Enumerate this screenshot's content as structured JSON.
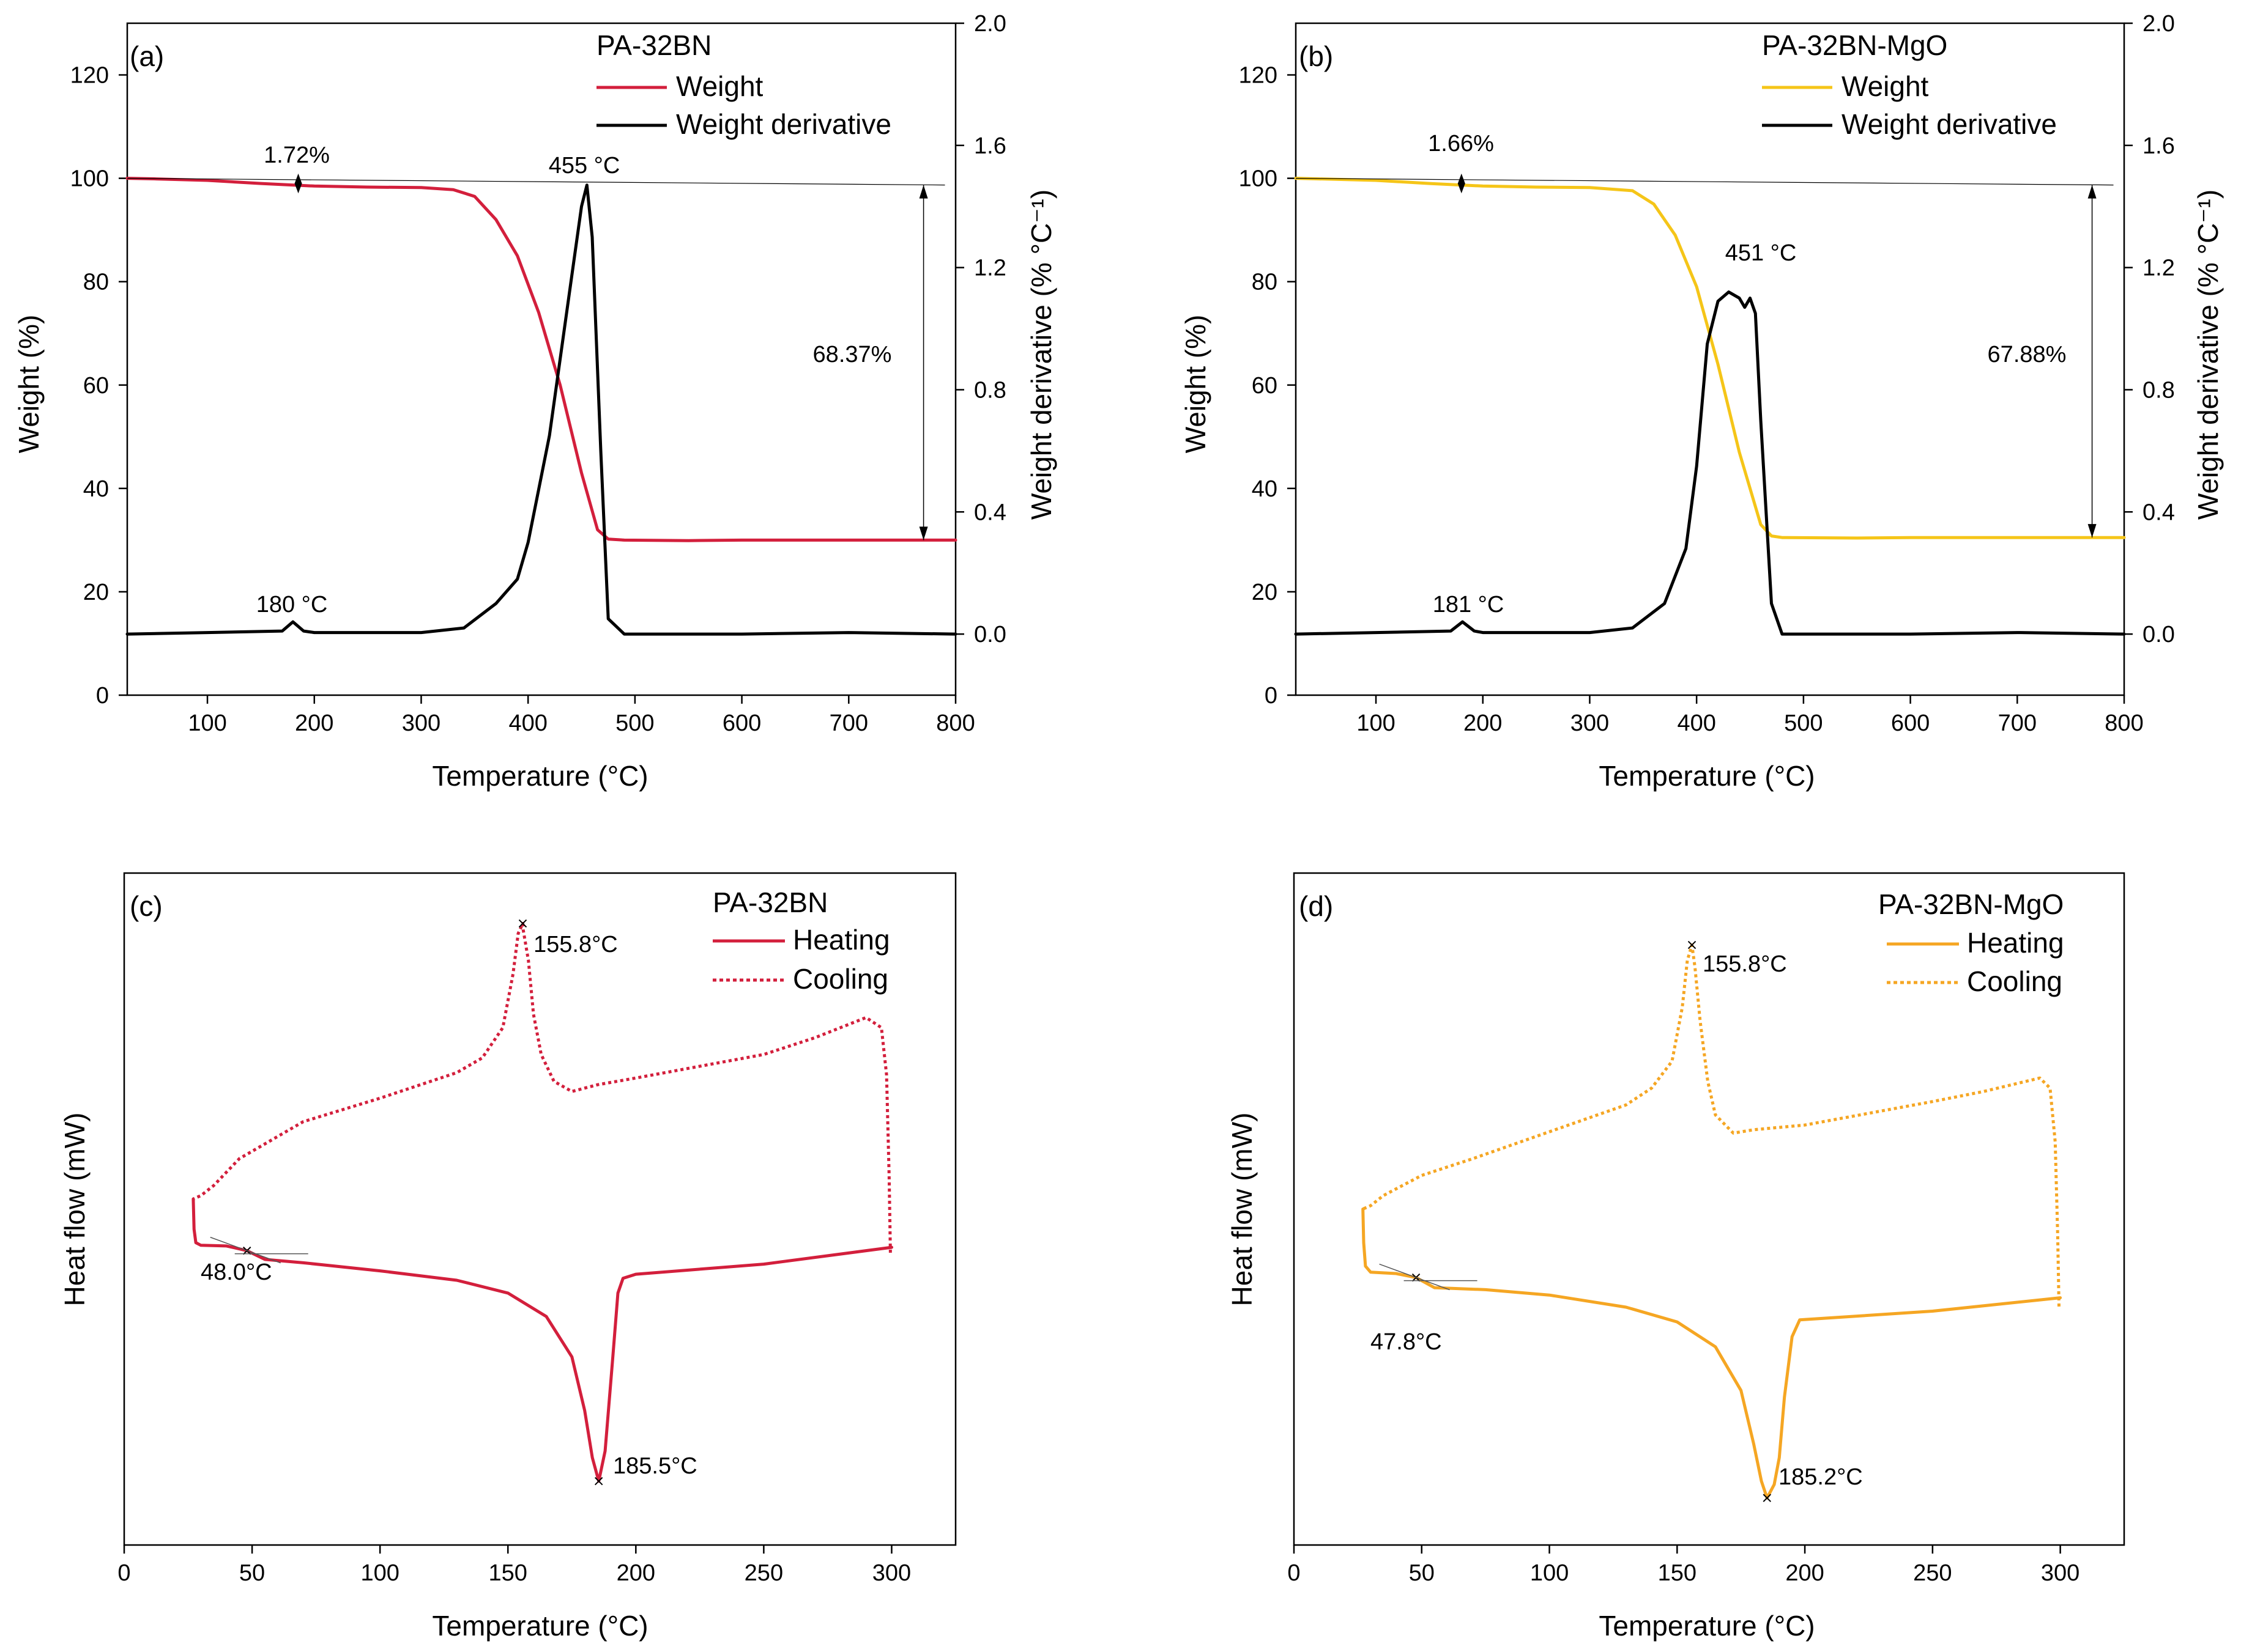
{
  "figure": {
    "panels": [
      {
        "label": "(a)"
      },
      {
        "label": "(b)"
      },
      {
        "label": "(c)"
      },
      {
        "label": "(d)"
      }
    ]
  },
  "chart_data": [
    {
      "panel": "(a)",
      "type": "line",
      "title": "PA-32BN",
      "xlabel": "Temperature (°C)",
      "ylabel": "Weight (%)",
      "y2label": "Weight derivative (% °C⁻¹)",
      "xlim": [
        25,
        800
      ],
      "ylim": [
        0,
        130
      ],
      "y2lim": [
        -0.2,
        2.0
      ],
      "xticks": [
        100,
        200,
        300,
        400,
        500,
        600,
        700,
        800
      ],
      "yticks": [
        0,
        20,
        40,
        60,
        80,
        100,
        120
      ],
      "y2ticks": [
        "0.0",
        "0.4",
        "0.8",
        "1.2",
        "1.6",
        "2.0"
      ],
      "legend_position": "top-right",
      "series": [
        {
          "name": "Weight",
          "axis": "left",
          "color": "#d31f3c",
          "style": "solid",
          "x": [
            25,
            50,
            100,
            150,
            200,
            250,
            300,
            330,
            350,
            370,
            390,
            410,
            430,
            450,
            465,
            475,
            490,
            550,
            600,
            700,
            800
          ],
          "y": [
            100,
            99.9,
            99.6,
            99.0,
            98.5,
            98.3,
            98.2,
            97.8,
            96.5,
            92,
            85,
            74,
            60,
            43,
            32,
            30.2,
            30.0,
            29.9,
            30.0,
            30.0,
            30.0
          ]
        },
        {
          "name": "Weight derivative",
          "axis": "right",
          "color": "#000000",
          "style": "solid",
          "x": [
            25,
            100,
            170,
            180,
            190,
            200,
            300,
            340,
            370,
            390,
            400,
            420,
            440,
            450,
            455,
            460,
            468,
            475,
            490,
            600,
            700,
            800
          ],
          "y": [
            0.0,
            0.005,
            0.01,
            0.04,
            0.01,
            0.005,
            0.005,
            0.02,
            0.1,
            0.18,
            0.3,
            0.65,
            1.15,
            1.4,
            1.47,
            1.3,
            0.6,
            0.05,
            0.0,
            0.0,
            0.005,
            0.0
          ]
        }
      ],
      "annotations": [
        {
          "text": "1.72%",
          "x": 185,
          "y": 98.7
        },
        {
          "text": "455 °C",
          "x": 455,
          "y": 98.7
        },
        {
          "text": "180 °C",
          "x": 180,
          "y": 16
        },
        {
          "text": "68.37%",
          "x": 770,
          "y": 64
        }
      ]
    },
    {
      "panel": "(b)",
      "type": "line",
      "title": "PA-32BN-MgO",
      "xlabel": "Temperature (°C)",
      "ylabel": "Weight (%)",
      "y2label": "Weight derivative (% °C⁻¹)",
      "xlim": [
        25,
        800
      ],
      "ylim": [
        0,
        130
      ],
      "y2lim": [
        -0.2,
        2.0
      ],
      "xticks": [
        100,
        200,
        300,
        400,
        500,
        600,
        700,
        800
      ],
      "yticks": [
        0,
        20,
        40,
        60,
        80,
        100,
        120
      ],
      "y2ticks": [
        "0.0",
        "0.4",
        "0.8",
        "1.2",
        "1.6",
        "2.0"
      ],
      "legend_position": "top-right",
      "series": [
        {
          "name": "Weight",
          "axis": "left",
          "color": "#f5c518",
          "style": "solid",
          "x": [
            25,
            100,
            150,
            200,
            250,
            300,
            340,
            360,
            380,
            400,
            420,
            440,
            460,
            470,
            480,
            550,
            600,
            700,
            800
          ],
          "y": [
            100,
            99.6,
            99.0,
            98.5,
            98.3,
            98.2,
            97.6,
            95,
            89,
            79,
            64,
            47,
            33,
            30.8,
            30.5,
            30.4,
            30.5,
            30.5,
            30.5
          ]
        },
        {
          "name": "Weight derivative",
          "axis": "right",
          "color": "#000000",
          "style": "solid",
          "x": [
            25,
            100,
            170,
            181,
            192,
            200,
            300,
            340,
            370,
            390,
            400,
            410,
            420,
            430,
            440,
            445,
            450,
            455,
            460,
            470,
            480,
            600,
            700,
            800
          ],
          "y": [
            0.0,
            0.005,
            0.01,
            0.04,
            0.01,
            0.005,
            0.005,
            0.02,
            0.1,
            0.28,
            0.55,
            0.95,
            1.09,
            1.12,
            1.1,
            1.07,
            1.1,
            1.05,
            0.7,
            0.1,
            0.0,
            0.0,
            0.005,
            0.0
          ]
        }
      ],
      "annotations": [
        {
          "text": "1.66%",
          "x": 180,
          "y": 99.5
        },
        {
          "text": "451 °C",
          "x": 451,
          "y": 84.5
        },
        {
          "text": "181 °C",
          "x": 181,
          "y": 16
        },
        {
          "text": "67.88%",
          "x": 770,
          "y": 64
        }
      ]
    },
    {
      "panel": "(c)",
      "type": "line",
      "title": "PA-32BN",
      "xlabel": "Temperature (°C)",
      "ylabel": "Heat flow (mW)",
      "xlim": [
        0,
        325
      ],
      "ylim": [
        0,
        100
      ],
      "xticks": [
        0,
        50,
        100,
        150,
        200,
        250,
        300
      ],
      "legend_position": "top-right",
      "series": [
        {
          "name": "Heating",
          "color": "#d31f3c",
          "style": "solid",
          "x": [
            27,
            27.3,
            28,
            30,
            40,
            48,
            55,
            70,
            100,
            130,
            150,
            165,
            175,
            180,
            183,
            185.5,
            188,
            191,
            193,
            195,
            200,
            250,
            300
          ],
          "y": [
            51.5,
            47,
            45,
            44.6,
            44.5,
            43.8,
            42.5,
            42,
            40.8,
            39.4,
            37.5,
            34,
            28,
            20,
            13,
            9.5,
            14,
            28,
            37.5,
            39.7,
            40.3,
            41.8,
            44.3
          ]
        },
        {
          "name": "Cooling",
          "color": "#d31f3c",
          "style": "dotted",
          "x": [
            299.5,
            299,
            298,
            296,
            290,
            270,
            250,
            200,
            185,
            175,
            168,
            163,
            160,
            158,
            156,
            155.8,
            154,
            152,
            148,
            140,
            130,
            100,
            70,
            45,
            35,
            30,
            27
          ],
          "y": [
            43.5,
            55,
            70,
            77,
            78.5,
            75.5,
            73,
            69.5,
            68.5,
            67.5,
            69,
            73,
            79,
            87,
            91.5,
            92.5,
            91,
            85,
            77,
            72.5,
            70.3,
            66.5,
            63,
            57.5,
            53.5,
            52,
            51.5
          ]
        }
      ],
      "annotations": [
        {
          "text": "155.8°C",
          "x": 155.8,
          "y": 92.5
        },
        {
          "text": "185.5°C",
          "x": 185.5,
          "y": 9.5
        },
        {
          "text": "48.0°C",
          "x": 48,
          "y": 43.8
        }
      ]
    },
    {
      "panel": "(d)",
      "type": "line",
      "title": "PA-32BN-MgO",
      "xlabel": "Temperature (°C)",
      "ylabel": "Heat flow (mW)",
      "xlim": [
        0,
        325
      ],
      "ylim": [
        0,
        100
      ],
      "xticks": [
        0,
        50,
        100,
        150,
        200,
        250,
        300
      ],
      "legend_position": "top-right",
      "series": [
        {
          "name": "Heating",
          "color": "#f5a623",
          "style": "solid",
          "x": [
            27,
            27.3,
            28,
            30,
            40,
            47.8,
            55,
            75,
            100,
            130,
            150,
            165,
            175,
            180,
            183,
            185.2,
            188,
            190,
            192,
            195,
            198,
            250,
            300
          ],
          "y": [
            50,
            45,
            41.5,
            40.6,
            40.4,
            39.8,
            38.3,
            38,
            37.2,
            35.4,
            33.2,
            29.5,
            23,
            15,
            9.5,
            7,
            9,
            13,
            22,
            31,
            33.5,
            34.8,
            36.8
          ]
        },
        {
          "name": "Cooling",
          "color": "#f5a623",
          "style": "dotted",
          "x": [
            299.5,
            299,
            298,
            296,
            292,
            270,
            250,
            200,
            180,
            172,
            165,
            162,
            159,
            157,
            155.8,
            154,
            152,
            148,
            140,
            130,
            100,
            70,
            50,
            35,
            30,
            27
          ],
          "y": [
            35.5,
            46,
            60,
            68,
            69.5,
            67.5,
            66,
            62.5,
            61.8,
            61.3,
            64,
            69,
            78,
            86,
            89.3,
            87,
            80,
            72,
            68,
            65.5,
            61.5,
            57.5,
            55,
            52,
            50.5,
            50
          ]
        }
      ],
      "annotations": [
        {
          "text": "155.8°C",
          "x": 155.8,
          "y": 89.3
        },
        {
          "text": "185.2°C",
          "x": 185.2,
          "y": 7
        },
        {
          "text": "47.8°C",
          "x": 47.8,
          "y": 39.8
        }
      ]
    }
  ]
}
